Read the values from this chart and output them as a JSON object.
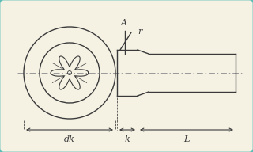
{
  "bg_color": "#f5f2e4",
  "border_color": "#5bbcb8",
  "line_color": "#3a3a3a",
  "center_color": "#999999",
  "label_color": "#3a3a3a",
  "fig_width": 3.2,
  "fig_height": 1.92,
  "dpi": 100,
  "dk_label": "dk",
  "k_label": "k",
  "L_label": "L",
  "A_label": "A",
  "r_label": "r"
}
